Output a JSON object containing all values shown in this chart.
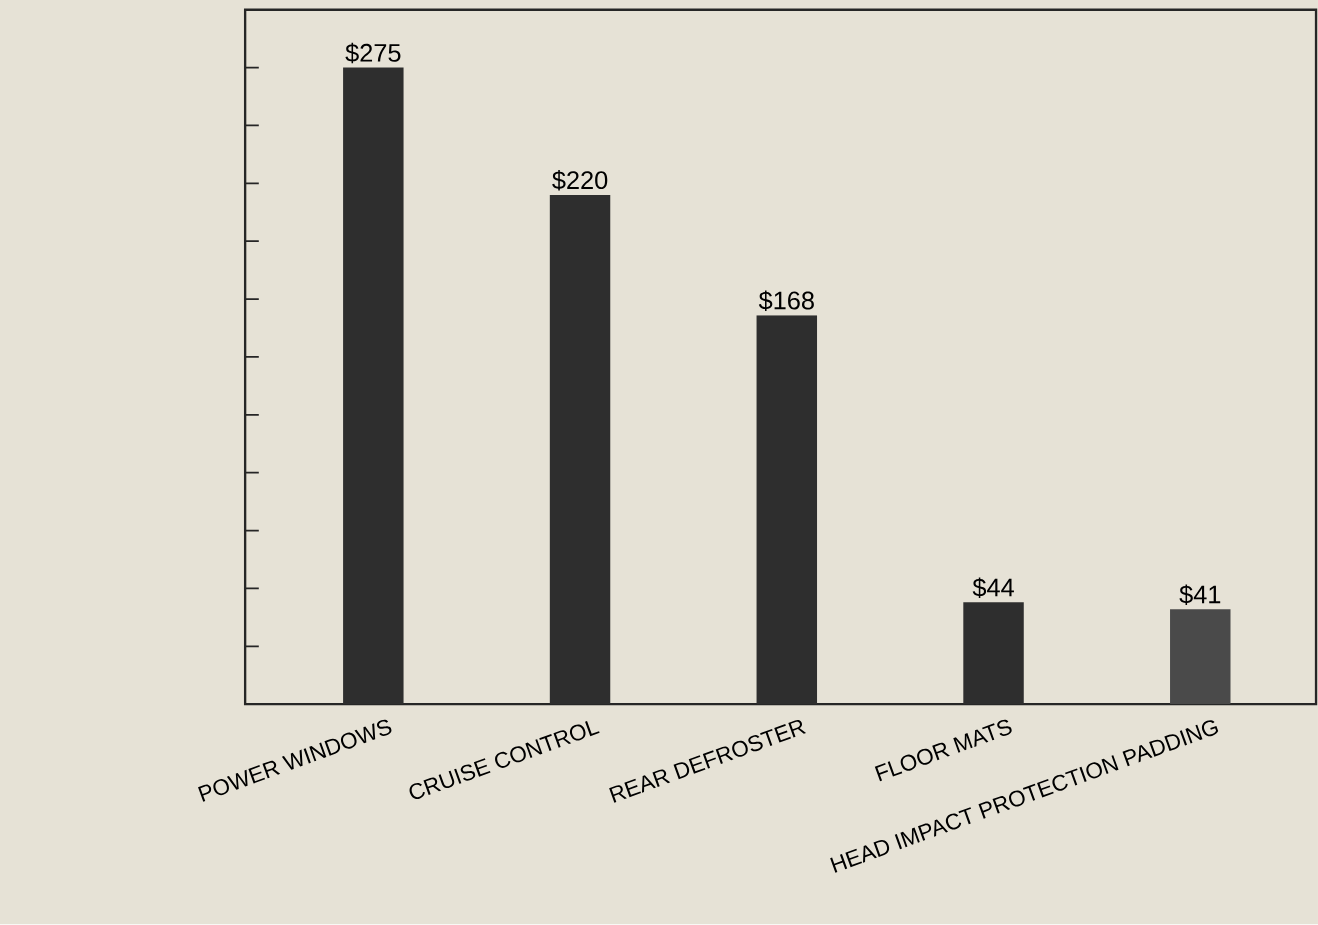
{
  "chart_data": {
    "type": "bar",
    "categories": [
      "POWER WINDOWS",
      "CRUISE CONTROL",
      "REAR DEFROSTER",
      "FLOOR MATS",
      "HEAD IMPACT PROTECTION PADDING"
    ],
    "values": [
      275,
      220,
      168,
      44,
      41
    ],
    "value_labels": [
      "$275",
      "$220",
      "$168",
      "$44",
      "$41"
    ],
    "colors": [
      "#2e2e2e",
      "#2e2e2e",
      "#2e2e2e",
      "#2e2e2e",
      "#4a4a4a"
    ],
    "ylim": [
      0,
      300
    ],
    "yticks": [
      {
        "value": 25,
        "label": null
      },
      {
        "value": 50,
        "label": null
      },
      {
        "value": 75,
        "label": null
      },
      {
        "value": 100,
        "label": null
      },
      {
        "value": 125,
        "label": null
      },
      {
        "value": 150,
        "label": null
      },
      {
        "value": 175,
        "label": null
      },
      {
        "value": 200,
        "label": null
      },
      {
        "value": 225,
        "label": null
      },
      {
        "value": 250,
        "label": null
      },
      {
        "value": 275,
        "label": null
      }
    ],
    "tick_labels": "x"
  }
}
